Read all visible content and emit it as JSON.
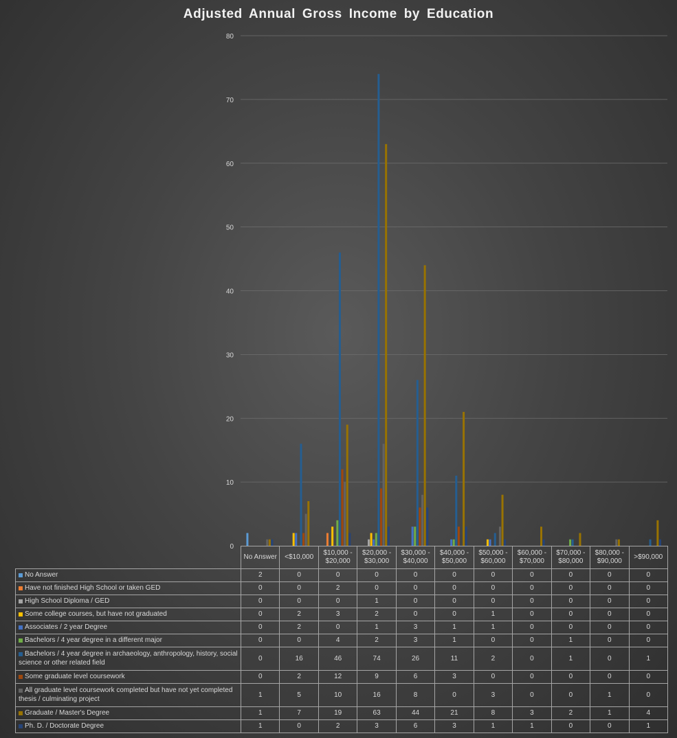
{
  "chart_data": {
    "type": "bar",
    "title": "Adjusted Annual Gross Income by Education",
    "xlabel": "",
    "ylabel": "",
    "ylim": [
      0,
      80
    ],
    "y_ticks": [
      "0",
      "10",
      "20",
      "30",
      "40",
      "50",
      "60",
      "70",
      "80"
    ],
    "grid": true,
    "legend": "data-table",
    "categories": [
      "No Answer",
      "<$10,000",
      "$10,000 - $20,000",
      "$20,000 - $30,000",
      "$30,000 - $40,000",
      "$40,000 - $50,000",
      "$50,000 - $60,000",
      "$60,000 - $70,000",
      "$70,000 - $80,000",
      "$80,000 - $90,000",
      ">$90,000"
    ],
    "series": [
      {
        "name": "No Answer",
        "color": "#5b9bd5",
        "values": [
          2,
          0,
          0,
          0,
          0,
          0,
          0,
          0,
          0,
          0,
          0
        ]
      },
      {
        "name": "Have not finished High School or taken GED",
        "color": "#ed7d31",
        "values": [
          0,
          0,
          2,
          0,
          0,
          0,
          0,
          0,
          0,
          0,
          0
        ]
      },
      {
        "name": "High School Diploma / GED",
        "color": "#a5a5a5",
        "values": [
          0,
          0,
          0,
          1,
          0,
          0,
          0,
          0,
          0,
          0,
          0
        ]
      },
      {
        "name": "Some college courses, but have not graduated",
        "color": "#ffc000",
        "values": [
          0,
          2,
          3,
          2,
          0,
          0,
          1,
          0,
          0,
          0,
          0
        ]
      },
      {
        "name": "Associates / 2 year Degree",
        "color": "#4472c4",
        "values": [
          0,
          2,
          0,
          1,
          3,
          1,
          1,
          0,
          0,
          0,
          0
        ]
      },
      {
        "name": "Bachelors / 4 year degree in a different major",
        "color": "#70ad47",
        "values": [
          0,
          0,
          4,
          2,
          3,
          1,
          0,
          0,
          1,
          0,
          0
        ]
      },
      {
        "name": "Bachelors / 4 year degree in archaeology, anthropology, history, social science or other related field",
        "color": "#255e91",
        "values": [
          0,
          16,
          46,
          74,
          26,
          11,
          2,
          0,
          1,
          0,
          1
        ]
      },
      {
        "name": "Some graduate level coursework",
        "color": "#9e480e",
        "values": [
          0,
          2,
          12,
          9,
          6,
          3,
          0,
          0,
          0,
          0,
          0
        ]
      },
      {
        "name": "All graduate level coursework completed but have not yet completed thesis / culminating project",
        "color": "#636363",
        "values": [
          1,
          5,
          10,
          16,
          8,
          0,
          3,
          0,
          0,
          1,
          0
        ]
      },
      {
        "name": "Graduate / Master's Degree",
        "color": "#997300",
        "values": [
          1,
          7,
          19,
          63,
          44,
          21,
          8,
          3,
          2,
          1,
          4
        ]
      },
      {
        "name": "Ph. D. / Doctorate Degree",
        "color": "#264478",
        "values": [
          1,
          0,
          2,
          3,
          6,
          3,
          1,
          1,
          0,
          0,
          1
        ]
      }
    ]
  }
}
